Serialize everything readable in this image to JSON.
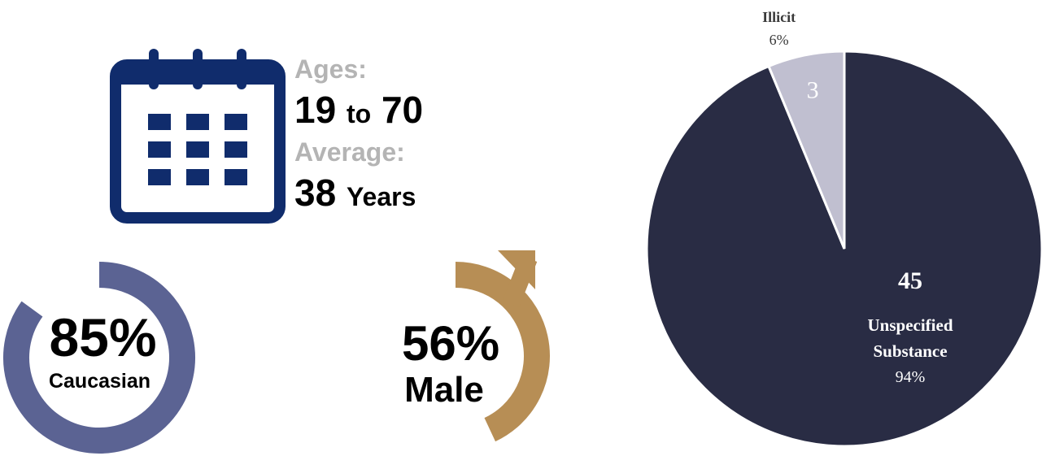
{
  "demographics": {
    "age_label": "Ages:",
    "age_range_min": "19",
    "age_range_joiner": "to",
    "age_range_max": "70",
    "average_label": "Average:",
    "average_value": "38",
    "average_unit": "Years",
    "calendar_color": "#102c6c"
  },
  "ethnicity": {
    "percent_text": "85%",
    "label": "Caucasian",
    "fraction": 0.85,
    "color": "#5b6393"
  },
  "gender": {
    "percent_text": "56%",
    "label": "Male",
    "fraction": 0.56,
    "color": "#b78e55"
  },
  "chart_data": {
    "type": "pie",
    "slices": [
      {
        "label": "Unspecified Substance",
        "value": 45,
        "percent": "94%",
        "color": "#292c44",
        "value_color": "#ffffff",
        "label_color": "#ffffff"
      },
      {
        "label": "Illicit",
        "value": 3,
        "percent": "6%",
        "color": "#c0bfd0",
        "value_color": "#ffffff",
        "label_color": "#3a3a3a"
      }
    ],
    "start_angle_deg": 0,
    "direction": "clockwise"
  }
}
